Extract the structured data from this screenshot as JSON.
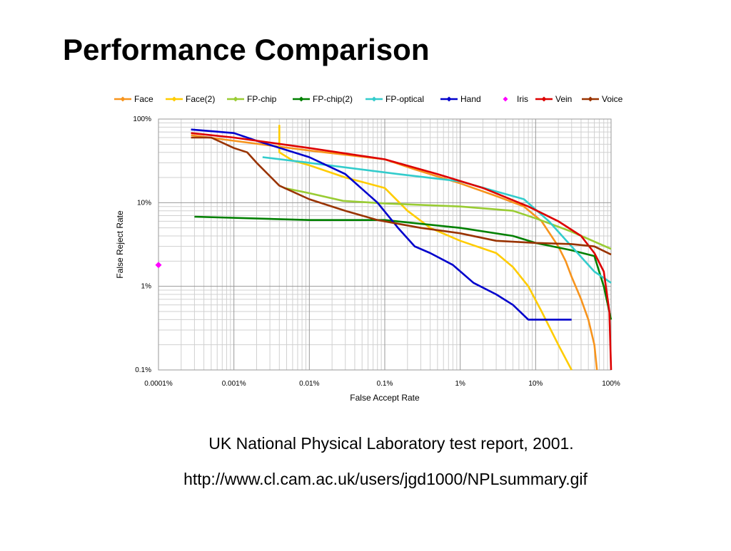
{
  "title": "Performance Comparison",
  "captions": [
    "UK National Physical Laboratory test report, 2001.",
    "http://www.cl.cam.ac.uk/users/jgd1000/NPLsummary.gif"
  ],
  "chart_data": {
    "type": "line",
    "xlabel": "False Accept Rate",
    "ylabel": "False Reject Rate",
    "xscale": "log",
    "yscale": "log",
    "grid": true,
    "legend": "top",
    "xlim": [
      0.0001,
      100
    ],
    "ylim": [
      0.1,
      100
    ],
    "xticks": [
      {
        "value": 0.0001,
        "label": "0.0001%"
      },
      {
        "value": 0.001,
        "label": "0.001%"
      },
      {
        "value": 0.01,
        "label": "0.01%"
      },
      {
        "value": 0.1,
        "label": "0.1%"
      },
      {
        "value": 1,
        "label": "1%"
      },
      {
        "value": 10,
        "label": "10%"
      },
      {
        "value": 100,
        "label": "100%"
      }
    ],
    "yticks": [
      {
        "value": 0.1,
        "label": "0.1%"
      },
      {
        "value": 1,
        "label": "1%"
      },
      {
        "value": 10,
        "label": "10%"
      },
      {
        "value": 100,
        "label": "100%"
      }
    ],
    "series": [
      {
        "name": "Face",
        "color": "#f7941d",
        "x": [
          0.00027,
          0.001,
          0.01,
          0.1,
          0.25,
          1,
          3,
          7,
          12,
          20,
          25,
          30,
          40,
          50,
          60,
          65
        ],
        "values": [
          64,
          55,
          42,
          33,
          25,
          17,
          12,
          9,
          6,
          3,
          2,
          1.3,
          0.7,
          0.4,
          0.2,
          0.1
        ]
      },
      {
        "name": "Face(2)",
        "color": "#ffcc00",
        "x": [
          0.004,
          0.004,
          0.006,
          0.01,
          0.03,
          0.1,
          0.2,
          0.4,
          1,
          3,
          5,
          8,
          12,
          20,
          30
        ],
        "values": [
          85,
          40,
          32,
          28,
          20,
          15,
          8,
          5,
          3.5,
          2.5,
          1.7,
          1,
          0.5,
          0.2,
          0.1
        ]
      },
      {
        "name": "FP-chip",
        "color": "#99cc33",
        "x": [
          0.0046,
          0.01,
          0.028,
          0.1,
          1,
          5,
          10,
          30,
          100
        ],
        "values": [
          15,
          13,
          10.5,
          9.8,
          9,
          8,
          6.5,
          4.5,
          2.8
        ]
      },
      {
        "name": "FP-chip(2)",
        "color": "#008000",
        "x": [
          0.0003,
          0.003,
          0.01,
          0.1,
          1,
          5,
          10,
          30,
          60,
          80,
          100
        ],
        "values": [
          6.8,
          6.4,
          6.2,
          6.2,
          5,
          4,
          3.3,
          2.7,
          2.3,
          1,
          0.4
        ]
      },
      {
        "name": "FP-optical",
        "color": "#33cccc",
        "x": [
          0.0024,
          0.01,
          0.15,
          1,
          7,
          15,
          30,
          60,
          100
        ],
        "values": [
          35,
          30,
          22,
          18,
          11,
          6,
          3,
          1.5,
          1.1
        ]
      },
      {
        "name": "Hand",
        "color": "#0000cc",
        "x": [
          0.00027,
          0.001,
          0.002,
          0.01,
          0.03,
          0.08,
          0.15,
          0.25,
          0.4,
          0.8,
          1.5,
          3,
          5,
          8,
          30
        ],
        "values": [
          75,
          68,
          55,
          35,
          22,
          10,
          5,
          3,
          2.5,
          1.8,
          1.1,
          0.8,
          0.6,
          0.4,
          0.4
        ]
      },
      {
        "name": "Iris",
        "color": "#ff00ff",
        "x": [
          0.0001
        ],
        "values": [
          1.8
        ]
      },
      {
        "name": "Vein",
        "color": "#dd0000",
        "x": [
          0.00027,
          0.001,
          0.01,
          0.1,
          0.5,
          2,
          8,
          20,
          40,
          60,
          80,
          95,
          100
        ],
        "values": [
          68,
          60,
          45,
          33,
          22,
          15,
          9,
          6,
          4,
          2.5,
          1.5,
          0.5,
          0.1
        ]
      },
      {
        "name": "Voice",
        "color": "#993300",
        "x": [
          0.00027,
          0.0005,
          0.001,
          0.0015,
          0.002,
          0.004,
          0.01,
          0.03,
          0.08,
          0.3,
          1,
          3,
          10,
          30,
          60,
          100
        ],
        "values": [
          60,
          60,
          45,
          40,
          30,
          16,
          11,
          8,
          6.2,
          5,
          4.3,
          3.5,
          3.3,
          3.2,
          3,
          2.4
        ]
      }
    ]
  }
}
